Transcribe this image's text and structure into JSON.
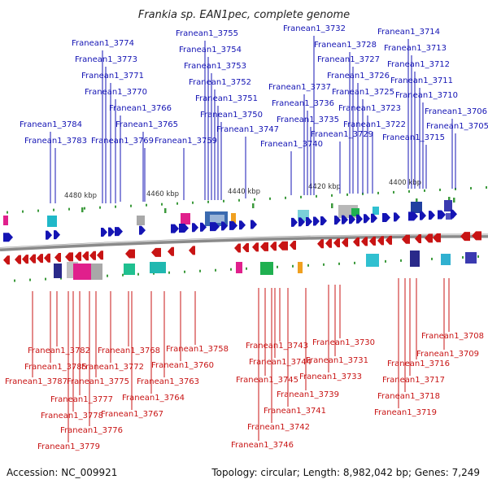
{
  "title": "Frankia sp. EAN1pec, complete genome",
  "footer": {
    "accession": "Accession: NC_009921",
    "summary": "Topology: circular; Length: 8,982,042 bp; Genes: 7,249"
  },
  "scale_labels": [
    "4480 kbp",
    "4460 kbp",
    "4440 kbp",
    "4420 kbp",
    "4400 kbp"
  ],
  "colors": {
    "forward": "#1414b4",
    "reverse": "#c81414",
    "backbone": "#8a8a8a",
    "tick": "#3c9a3c"
  },
  "forward_genes": [
    "Franean1_3774",
    "Franean1_3773",
    "Franean1_3771",
    "Franean1_3770",
    "Franean1_3766",
    "Franean1_3765",
    "Franean1_3784",
    "Franean1_3783",
    "Franean1_3769",
    "Franean1_3759",
    "Franean1_3755",
    "Franean1_3754",
    "Franean1_3753",
    "Franean1_3752",
    "Franean1_3751",
    "Franean1_3750",
    "Franean1_3747",
    "Franean1_3737",
    "Franean1_3736",
    "Franean1_3735",
    "Franean1_3740",
    "Franean1_3732",
    "Franean1_3728",
    "Franean1_3727",
    "Franean1_3726",
    "Franean1_3725",
    "Franean1_3723",
    "Franean1_3722",
    "Franean1_3729",
    "Franean1_3714",
    "Franean1_3713",
    "Franean1_3712",
    "Franean1_3711",
    "Franean1_3710",
    "Franean1_3706",
    "Franean1_3705",
    "Franean1_3715"
  ],
  "reverse_genes": [
    "Franean1_3782",
    "Franean1_3785",
    "Franean1_3787",
    "Franean1_3777",
    "Franean1_3778",
    "Franean1_3776",
    "Franean1_3779",
    "Franean1_3768",
    "Franean1_3772",
    "Franean1_3775",
    "Franean1_3763",
    "Franean1_3764",
    "Franean1_3767",
    "Franean1_3758",
    "Franean1_3760",
    "Franean1_3743",
    "Franean1_3744",
    "Franean1_3745",
    "Franean1_3739",
    "Franean1_3741",
    "Franean1_3742",
    "Franean1_3746",
    "Franean1_3730",
    "Franean1_3731",
    "Franean1_3733",
    "Franean1_3708",
    "Franean1_3709",
    "Franean1_3716",
    "Franean1_3717",
    "Franean1_3718",
    "Franean1_3719"
  ]
}
